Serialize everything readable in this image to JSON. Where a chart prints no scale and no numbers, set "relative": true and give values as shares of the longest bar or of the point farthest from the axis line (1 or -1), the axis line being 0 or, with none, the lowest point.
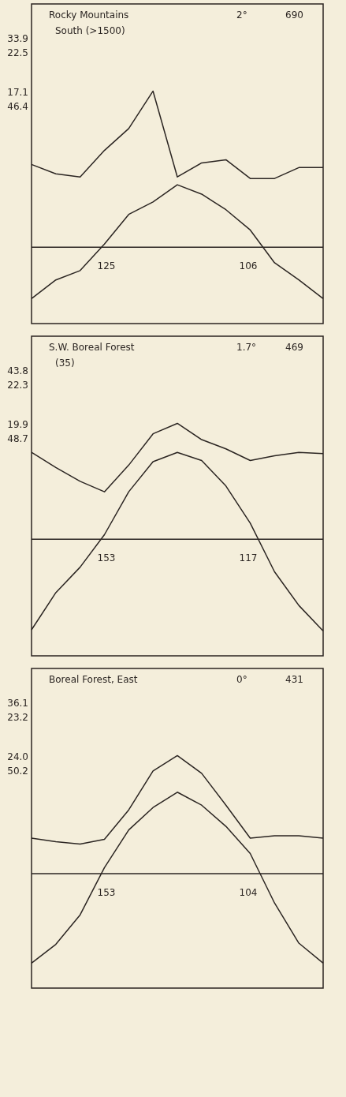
{
  "chart_data": [
    {
      "type": "line",
      "relative": true,
      "title": "Rocky Mountains",
      "subtitle": "South (>1500)",
      "annotations": [
        "2°",
        "690",
        "33.9",
        "22.5",
        "17.1",
        "46.4",
        "125",
        "106"
      ],
      "categories": [
        null,
        null,
        null,
        null,
        null,
        null,
        null,
        null,
        null,
        null,
        null,
        null,
        null
      ],
      "series": [
        {
          "color": "#2b2522",
          "values": [
            -0.33,
            -0.21,
            -0.15,
            0.02,
            0.21,
            0.29,
            0.4,
            0.34,
            0.24,
            0.11,
            -0.1,
            -0.21,
            -0.33
          ]
        },
        {
          "color": "#2b2522",
          "values": [
            0.53,
            0.47,
            0.45,
            0.62,
            0.76,
            1,
            0.45,
            0.54,
            0.56,
            0.44,
            0.44,
            0.51,
            0.51
          ]
        }
      ]
    },
    {
      "type": "line",
      "relative": true,
      "title": "S.W. Boreal Forest",
      "subtitle": "(35)",
      "annotations": [
        "1.7°",
        "469",
        "43.8",
        "22.3",
        "19.9",
        "48.7",
        "153",
        "117"
      ],
      "categories": [
        null,
        null,
        null,
        null,
        null,
        null,
        null,
        null,
        null,
        null,
        null,
        null,
        null
      ],
      "series": [
        {
          "color": "#2b2522",
          "values": [
            -0.78,
            -0.46,
            -0.24,
            0.04,
            0.41,
            0.67,
            0.75,
            0.68,
            0.46,
            0.14,
            -0.28,
            -0.57,
            -0.79
          ]
        },
        {
          "color": "#2b2522",
          "values": [
            0.75,
            0.62,
            0.5,
            0.41,
            0.64,
            0.91,
            1,
            0.86,
            0.78,
            0.68,
            0.72,
            0.75,
            0.74
          ]
        }
      ]
    },
    {
      "type": "line",
      "relative": true,
      "title": "Boreal Forest, East",
      "annotations": [
        "0°",
        "431",
        "36.1",
        "23.2",
        "24.0",
        "50.2",
        "153",
        "104"
      ],
      "categories": [
        null,
        null,
        null,
        null,
        null,
        null,
        null,
        null,
        null,
        null,
        null,
        null,
        null
      ],
      "series": [
        {
          "color": "#2b2522",
          "values": [
            -0.76,
            -0.6,
            -0.35,
            0.05,
            0.37,
            0.56,
            0.69,
            0.58,
            0.4,
            0.17,
            -0.25,
            -0.59,
            -0.76
          ]
        },
        {
          "color": "#2b2522",
          "values": [
            0.3,
            0.27,
            0.25,
            0.29,
            0.54,
            0.87,
            1,
            0.85,
            0.58,
            0.3,
            0.32,
            0.32,
            0.3
          ]
        }
      ]
    }
  ]
}
